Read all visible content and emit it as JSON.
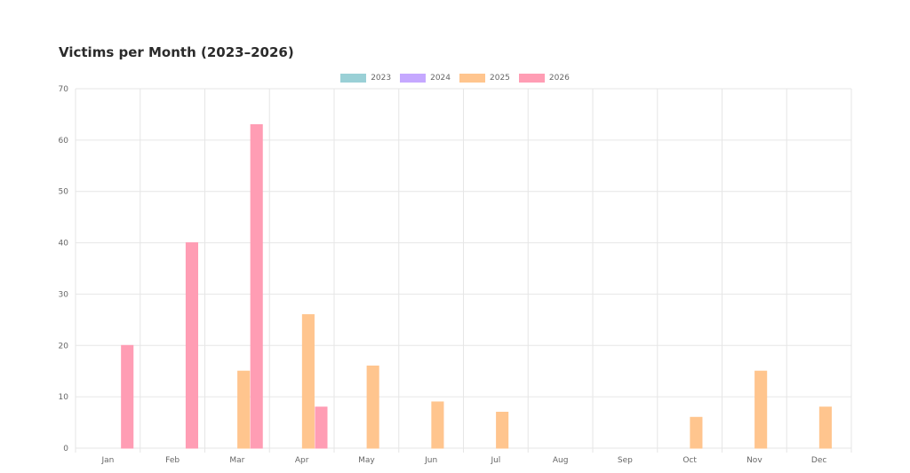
{
  "chart_data": {
    "type": "bar",
    "title": "Victims per Month (2023–2026)",
    "xlabel": "",
    "ylabel": "",
    "categories": [
      "Jan",
      "Feb",
      "Mar",
      "Apr",
      "May",
      "Jun",
      "Jul",
      "Aug",
      "Sep",
      "Oct",
      "Nov",
      "Dec"
    ],
    "ylim": [
      0,
      70
    ],
    "yticks": [
      0,
      10,
      20,
      30,
      40,
      50,
      60,
      70
    ],
    "grid": true,
    "legend_position": "top-center",
    "series": [
      {
        "name": "2023",
        "color": "#9ad0d6",
        "values": [
          0,
          0,
          0,
          0,
          0,
          0,
          0,
          0,
          0,
          0,
          0,
          0
        ]
      },
      {
        "name": "2024",
        "color": "#c5a8ff",
        "values": [
          0,
          0,
          0,
          0,
          0,
          0,
          0,
          0,
          0,
          0,
          0,
          0
        ]
      },
      {
        "name": "2025",
        "color": "#ffc58e",
        "values": [
          0,
          0,
          15,
          26,
          16,
          9,
          7,
          0,
          0,
          6,
          15,
          8
        ]
      },
      {
        "name": "2026",
        "color": "#ff9db4",
        "values": [
          20,
          40,
          63,
          8,
          0,
          0,
          0,
          0,
          0,
          0,
          0,
          0
        ]
      }
    ]
  }
}
